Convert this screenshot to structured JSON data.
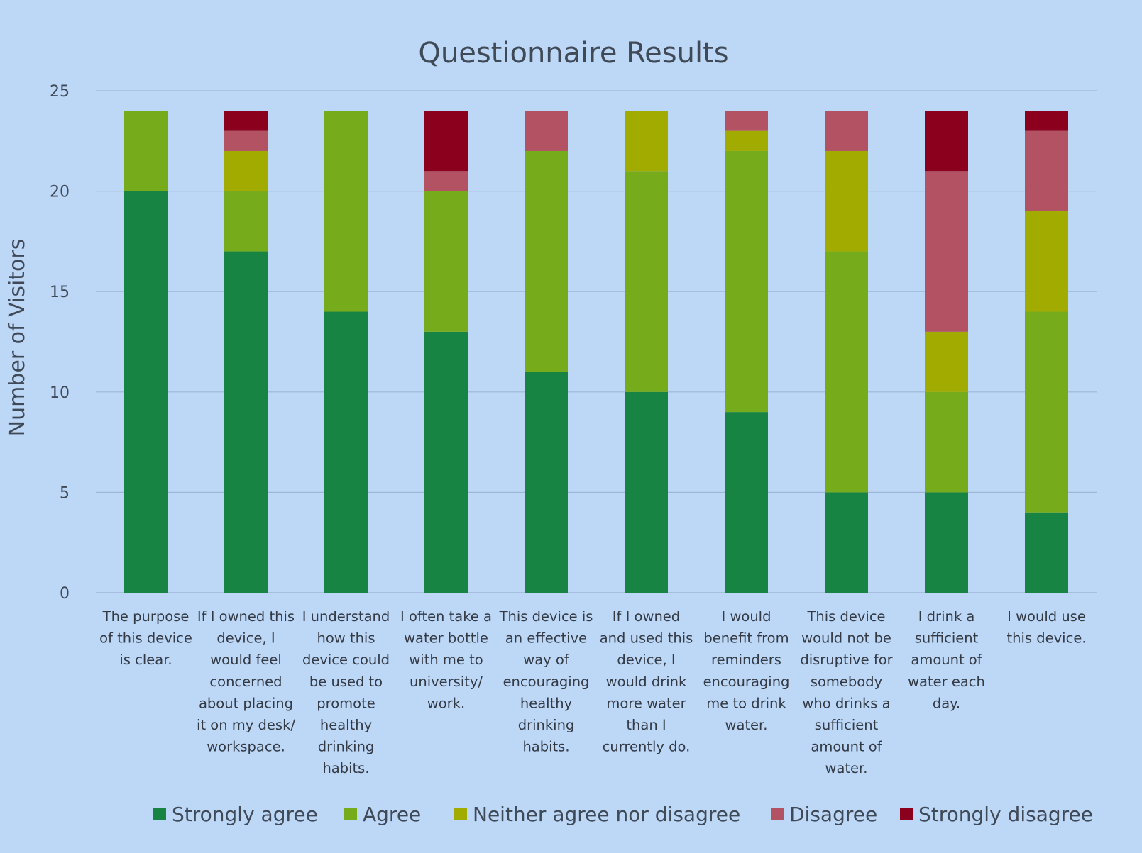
{
  "chart_data": {
    "type": "bar",
    "stacked": true,
    "title": "Questionnaire Results",
    "xlabel": "",
    "ylabel": "Number of Visitors",
    "ylim": [
      0,
      25
    ],
    "yticks": [
      0,
      5,
      10,
      15,
      20,
      25
    ],
    "grid": true,
    "legend_position": "bottom",
    "categories": [
      "The purpose of this device is clear.",
      "If I owned this device, I would feel concerned about placing it on my desk/ workspace.",
      "I understand how this device could be used to promote healthy drinking habits.",
      "I often take a water bottle with me to university/ work.",
      "This device is an effective way of encouraging healthy drinking habits.",
      "If I owned and used this device, I would drink more water than I currently do.",
      "I would benefit from reminders encouraging me to drink water.",
      "This device would not be disruptive for somebody who drinks a sufficient amount of water.",
      "I drink a sufficient amount of water each day.",
      "I would use this device."
    ],
    "category_lines": [
      [
        "The purpose",
        "of this device",
        "is clear."
      ],
      [
        "If I owned this",
        "device, I",
        "would feel",
        "concerned",
        "about placing",
        "it on my desk/",
        "workspace."
      ],
      [
        "I understand",
        "how this",
        "device could",
        "be used to",
        "promote",
        "healthy",
        "drinking",
        "habits."
      ],
      [
        "I often take a",
        "water bottle",
        "with me to",
        "university/",
        "work."
      ],
      [
        "This device is",
        "an effective",
        "way of",
        "encouraging",
        "healthy",
        "drinking",
        "habits."
      ],
      [
        "If I owned",
        "and used this",
        "device, I",
        "would drink",
        "more water",
        "than I",
        "currently do."
      ],
      [
        "I would",
        "benefit from",
        "reminders",
        "encouraging",
        "me to drink",
        "water."
      ],
      [
        "This device",
        "would not be",
        "disruptive for",
        "somebody",
        "who drinks a",
        "sufficient",
        "amount of",
        "water."
      ],
      [
        "I drink a",
        "sufficient",
        "amount of",
        "water each",
        "day."
      ],
      [
        "I would use",
        "this device."
      ]
    ],
    "series": [
      {
        "name": "Strongly agree",
        "color": "#178444",
        "values": [
          20,
          17,
          14,
          13,
          11,
          10,
          9,
          5,
          5,
          4
        ]
      },
      {
        "name": "Agree",
        "color": "#76ac1b",
        "values": [
          4,
          3,
          10,
          7,
          11,
          11,
          13,
          12,
          5,
          10
        ]
      },
      {
        "name": "Neither agree nor disagree",
        "color": "#a2ac00",
        "values": [
          0,
          2,
          0,
          0,
          0,
          3,
          1,
          5,
          3,
          5
        ]
      },
      {
        "name": "Disagree",
        "color": "#b35262",
        "values": [
          0,
          1,
          0,
          1,
          2,
          0,
          1,
          2,
          8,
          4
        ]
      },
      {
        "name": "Strongly disagree",
        "color": "#8b001c",
        "values": [
          0,
          1,
          0,
          3,
          0,
          0,
          0,
          0,
          3,
          1
        ]
      }
    ]
  }
}
